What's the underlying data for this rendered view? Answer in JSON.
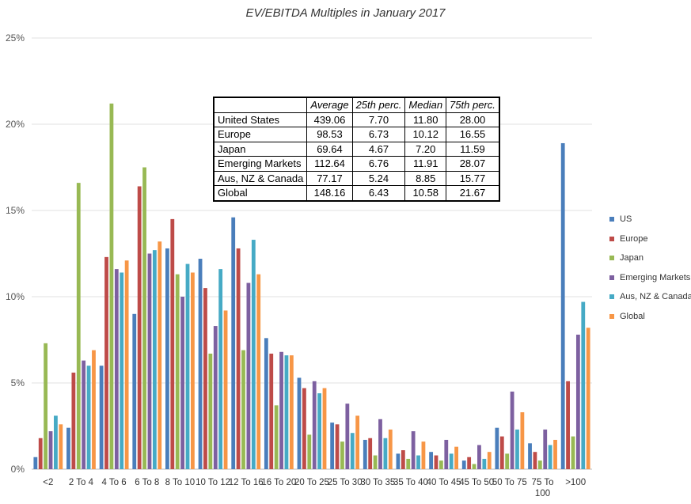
{
  "chart_data": {
    "type": "bar",
    "title": "EV/EBITDA Multiples in January 2017",
    "xlabel": "",
    "ylabel": "",
    "ylim": [
      0,
      0.25
    ],
    "yticks": [
      "0%",
      "5%",
      "10%",
      "15%",
      "20%",
      "25%"
    ],
    "grid": true,
    "legend_position": "right",
    "categories": [
      "<2",
      "2 To 4",
      "4 To 6",
      "6 To 8",
      "8 To 10",
      "10 To 12",
      "12 To 16",
      "16 To 20",
      "20 To 25",
      "25 To 30",
      "30 To 35",
      "35 To 40",
      "40 To 45",
      "45 To 50",
      "50 To 75",
      "75 To 100",
      ">100"
    ],
    "category_labels": [
      "<2",
      "2 To 4",
      "4 To 6",
      "6 To 8",
      "8 To 10",
      "10 To 12",
      "12 To 16",
      "16 To 20",
      "20 To 25",
      "25 To 30",
      "30 To 35",
      "35 To 40",
      "40 To 45",
      "45 To 50",
      "50 To 75",
      "75 To\n100",
      ">100"
    ],
    "series": [
      {
        "name": "US",
        "color": "#4a7ebb",
        "values": [
          0.007,
          0.024,
          0.06,
          0.09,
          0.128,
          0.122,
          0.146,
          0.076,
          0.053,
          0.027,
          0.017,
          0.009,
          0.01,
          0.005,
          0.024,
          0.015,
          0.189
        ]
      },
      {
        "name": "Europe",
        "color": "#be4b48",
        "values": [
          0.018,
          0.056,
          0.123,
          0.164,
          0.145,
          0.105,
          0.128,
          0.067,
          0.047,
          0.026,
          0.018,
          0.011,
          0.008,
          0.007,
          0.019,
          0.01,
          0.051
        ]
      },
      {
        "name": "Japan",
        "color": "#98b954",
        "values": [
          0.073,
          0.166,
          0.212,
          0.175,
          0.113,
          0.067,
          0.069,
          0.037,
          0.02,
          0.016,
          0.008,
          0.006,
          0.005,
          0.003,
          0.009,
          0.005,
          0.019
        ]
      },
      {
        "name": "Emerging Markets",
        "color": "#7d60a0",
        "values": [
          0.022,
          0.063,
          0.116,
          0.125,
          0.1,
          0.083,
          0.108,
          0.068,
          0.051,
          0.038,
          0.029,
          0.022,
          0.017,
          0.014,
          0.045,
          0.023,
          0.078
        ]
      },
      {
        "name": "Aus, NZ & Canada",
        "color": "#46aac5",
        "values": [
          0.031,
          0.06,
          0.114,
          0.127,
          0.119,
          0.116,
          0.133,
          0.066,
          0.044,
          0.021,
          0.018,
          0.008,
          0.009,
          0.006,
          0.023,
          0.014,
          0.097
        ]
      },
      {
        "name": "Global",
        "color": "#f79646",
        "values": [
          0.026,
          0.069,
          0.121,
          0.132,
          0.114,
          0.092,
          0.113,
          0.066,
          0.047,
          0.031,
          0.023,
          0.016,
          0.013,
          0.01,
          0.033,
          0.017,
          0.082
        ]
      }
    ],
    "table": {
      "headers": [
        "",
        "Average",
        "25th perc.",
        "Median",
        "75th perc."
      ],
      "rows": [
        [
          "United States",
          "439.06",
          "7.70",
          "11.80",
          "28.00"
        ],
        [
          "Europe",
          "98.53",
          "6.73",
          "10.12",
          "16.55"
        ],
        [
          "Japan",
          "69.64",
          "4.67",
          "7.20",
          "11.59"
        ],
        [
          "Emerging Markets",
          "112.64",
          "6.76",
          "11.91",
          "28.07"
        ],
        [
          "Aus, NZ & Canada",
          "77.17",
          "5.24",
          "8.85",
          "15.77"
        ],
        [
          "Global",
          "148.16",
          "6.43",
          "10.58",
          "21.67"
        ]
      ]
    }
  }
}
